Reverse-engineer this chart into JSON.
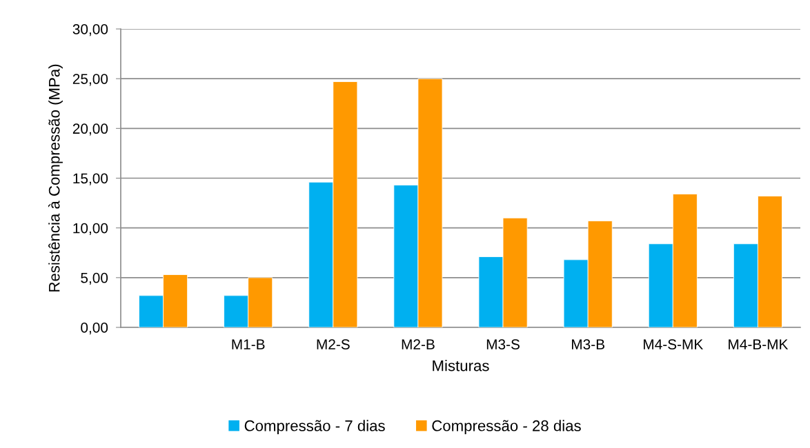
{
  "chart_data": {
    "type": "bar",
    "xlabel": "Misturas",
    "ylabel": "Resistência à Compressão (MPa)",
    "categories": [
      null,
      "M1-B",
      "M2-S",
      "M2-B",
      "M3-S",
      "M3-B",
      "M4-S-MK",
      "M4-B-MK"
    ],
    "series": [
      {
        "name": "Compressão - 7 dias",
        "color": "#00b0f0",
        "values": [
          3.2,
          3.2,
          14.6,
          14.3,
          7.1,
          6.8,
          8.4,
          8.4
        ]
      },
      {
        "name": "Compressão - 28 dias",
        "color": "#ff9900",
        "values": [
          5.3,
          5.0,
          24.7,
          25.0,
          11.0,
          10.7,
          13.4,
          13.2
        ]
      }
    ],
    "ylim": [
      0,
      30
    ],
    "yticks": [
      {
        "value": 0,
        "label": "0,00"
      },
      {
        "value": 5,
        "label": "5,00"
      },
      {
        "value": 10,
        "label": "10,00"
      },
      {
        "value": 15,
        "label": "15,00"
      },
      {
        "value": 20,
        "label": "20,00"
      },
      {
        "value": 25,
        "label": "25,00"
      },
      {
        "value": 30,
        "label": "30,00"
      }
    ],
    "grid": "y",
    "legend": "bottom"
  }
}
